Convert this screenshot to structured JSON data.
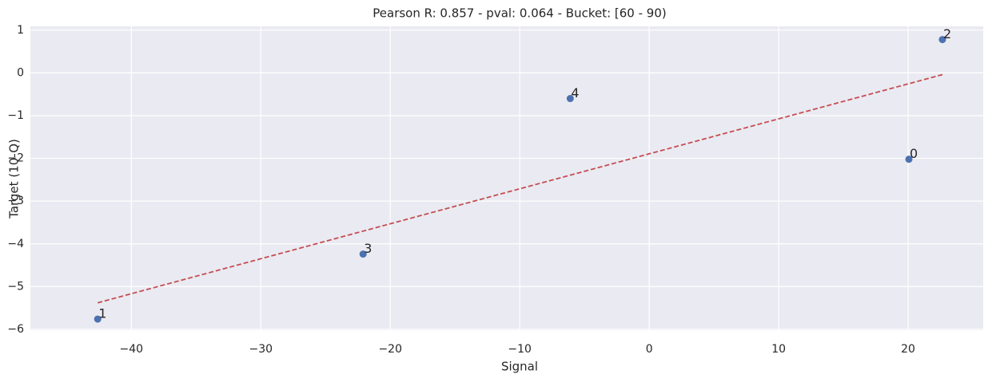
{
  "chart_data": {
    "type": "scatter",
    "title": "Pearson R: 0.857 - pval: 0.064 - Bucket: [60 - 90)",
    "x_label": "Signal",
    "y_label": "Target (10-Q)",
    "x": [
      20.06,
      -42.6,
      22.65,
      -22.1,
      -6.1
    ],
    "values": [
      -2.02,
      -5.76,
      0.78,
      -4.24,
      -0.6
    ],
    "point_labels": [
      "0",
      "1",
      "2",
      "3",
      "4"
    ],
    "color": "#4c72b0",
    "fit_line": {
      "x": [
        -42.6,
        22.65
      ],
      "values": [
        -5.38,
        -0.04
      ],
      "color": "#c44e52",
      "dashed": true
    },
    "xlim": [
      -47.8,
      25.8
    ],
    "xticks": [
      {
        "value": -40,
        "label": "−40"
      },
      {
        "value": -30,
        "label": "−30"
      },
      {
        "value": -20,
        "label": "−20"
      },
      {
        "value": -10,
        "label": "−10"
      },
      0,
      10,
      20
    ],
    "ylim": [
      -6.02,
      1.09
    ],
    "yticks": [
      1,
      0,
      {
        "value": -1,
        "label": "−1"
      },
      {
        "value": -2,
        "label": "−2"
      },
      {
        "value": -3,
        "label": "−3"
      },
      {
        "value": -4,
        "label": "−4"
      },
      {
        "value": -5,
        "label": "−5"
      },
      {
        "value": -6,
        "label": "−6"
      }
    ],
    "grid": true
  }
}
